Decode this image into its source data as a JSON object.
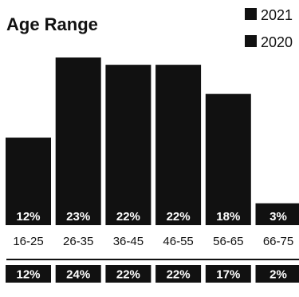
{
  "chart_data": {
    "type": "bar",
    "title": "Age Range",
    "categories": [
      "16-25",
      "26-35",
      "36-45",
      "46-55",
      "56-65",
      "66-75"
    ],
    "series": [
      {
        "name": "2021",
        "values": [
          12,
          23,
          22,
          22,
          18,
          3
        ]
      },
      {
        "name": "2020",
        "values": [
          12,
          24,
          22,
          22,
          17,
          2
        ]
      }
    ],
    "value_suffix": "%",
    "legend_position": "top-right",
    "bar_color": "#111111",
    "label_color": "#ffffff"
  }
}
